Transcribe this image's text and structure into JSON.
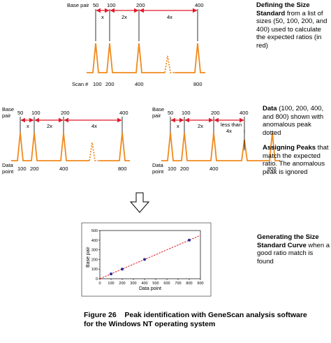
{
  "panel_top": {
    "row_label": "Base pair",
    "base_pairs": [
      "50",
      "100",
      "200",
      "400"
    ],
    "ratios": [
      "x",
      "2x",
      "4x"
    ],
    "scan_label": "Scan #",
    "scans": [
      "100",
      "200",
      "400",
      "800"
    ]
  },
  "panel_left": {
    "row_label_1": "Base",
    "row_label_2": "pair",
    "base_pairs": [
      "50",
      "100",
      "200",
      "400"
    ],
    "ratios": [
      "x",
      "2x",
      "4x"
    ],
    "data_label_1": "Data",
    "data_label_2": "point",
    "points": [
      "100",
      "200",
      "400",
      "800"
    ]
  },
  "panel_right": {
    "row_label_1": "Base",
    "row_label_2": "pair",
    "base_pairs": [
      "50",
      "100",
      "200",
      "400"
    ],
    "ratios": [
      "x",
      "2x"
    ],
    "less_than_1": "less than",
    "less_than_2": "4x",
    "data_label_1": "Data",
    "data_label_2": "point",
    "points": [
      "100",
      "200",
      "400",
      "800"
    ]
  },
  "side_notes": {
    "n1_bold": "Defining the Size Standard",
    "n1_text": "from a list of sizes (50, 100, 200, and 400) used to calculate the expected ratios (in red)",
    "n2_bold": "Data",
    "n2_text": "(100, 200, 400, and 800) shown with anomalous peak dotted",
    "n3_bold": "Assigning Peaks",
    "n3_text": "that match the expected ratio. The anomalous peak is ignored",
    "n4_bold": "Generating the Size Standard Curve",
    "n4_text": "when a good ratio match is found"
  },
  "chart_data": {
    "type": "scatter",
    "xlabel": "Data point",
    "ylabel": "Base pair",
    "xlim": [
      0,
      900
    ],
    "ylim": [
      0,
      500
    ],
    "x_ticks": [
      "0",
      "100",
      "200",
      "300",
      "400",
      "500",
      "600",
      "700",
      "800",
      "900"
    ],
    "y_ticks": [
      "0",
      "100",
      "200",
      "300",
      "400",
      "500"
    ],
    "points": [
      {
        "x": 100,
        "y": 50
      },
      {
        "x": 200,
        "y": 100
      },
      {
        "x": 400,
        "y": 200
      },
      {
        "x": 800,
        "y": 400
      }
    ],
    "fit_line": {
      "x": [
        0,
        900
      ],
      "y": [
        0,
        450
      ]
    }
  },
  "caption": {
    "line1": "Figure 26    Peak identification with GeneScan analysis software",
    "line2": "for the Windows NT operating system"
  },
  "colors": {
    "trace": "#f08a1e",
    "ratio": "#e0192a",
    "point": "#2a2a9a",
    "fit": "#e0192a"
  }
}
